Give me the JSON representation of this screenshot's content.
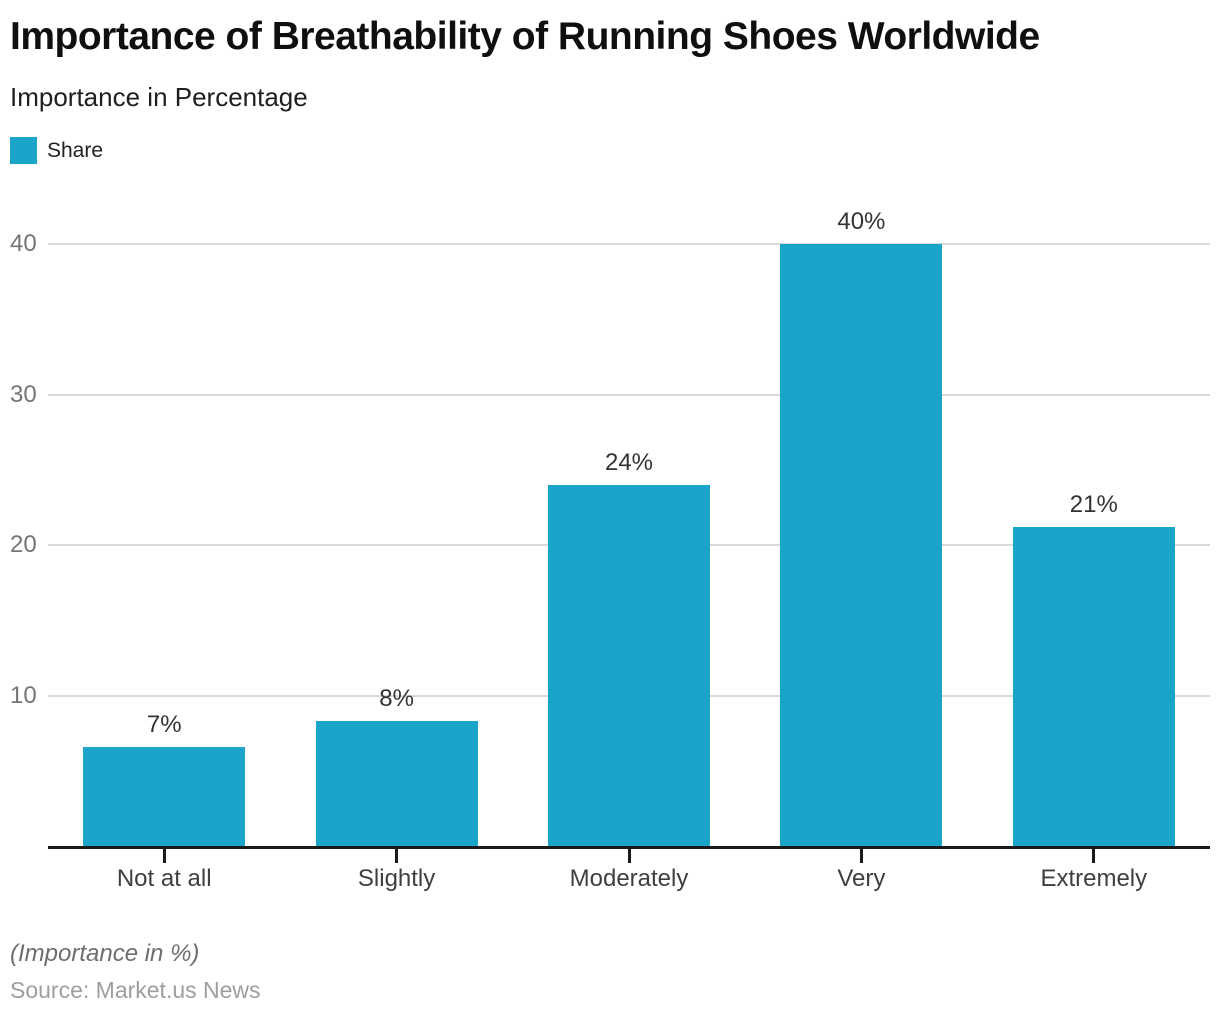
{
  "header": {
    "title": "Importance of Breathability of Running Shoes Worldwide",
    "subtitle": "Importance in Percentage"
  },
  "legend": {
    "label": "Share"
  },
  "chart_data": {
    "type": "bar",
    "title": "Importance of Breathability of Running Shoes Worldwide",
    "subtitle": "Importance in Percentage",
    "categories": [
      "Not at all",
      "Slightly",
      "Moderately",
      "Very",
      "Extremely"
    ],
    "series": [
      {
        "name": "Share",
        "values": [
          7,
          8,
          24,
          40,
          21
        ]
      }
    ],
    "value_labels": [
      "7%",
      "8%",
      "24%",
      "40%",
      "21%"
    ],
    "bar_rendered_values": [
      6.6,
      8.3,
      24,
      40,
      21.2
    ],
    "yticks": [
      10,
      20,
      30,
      40
    ],
    "ylim": [
      0,
      40
    ],
    "xlabel": "",
    "ylabel": "",
    "grid": "horizontal-only",
    "legend_position": "top-left"
  },
  "footer": {
    "note": "(Importance in %)",
    "source": "Source: Market.us News"
  },
  "colors": {
    "bar": "#1BA4CA",
    "gridline": "#D9D9D9",
    "axis_line": "#1A1A1A",
    "y_tick_label": "#757575",
    "x_tick_label": "#3F3F3F",
    "value_label": "#333333"
  }
}
